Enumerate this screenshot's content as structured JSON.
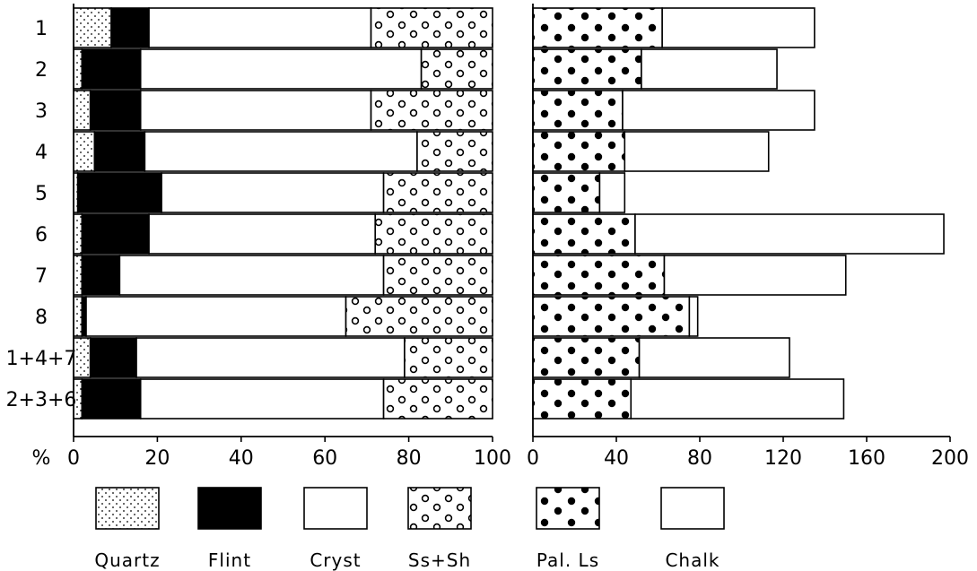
{
  "chart_data": [
    {
      "type": "bar",
      "stacked": true,
      "orientation": "horizontal",
      "categories": [
        "1",
        "2",
        "3",
        "4",
        "5",
        "6",
        "7",
        "8",
        "1+4+7",
        "2+3+6"
      ],
      "xlim": [
        0,
        100
      ],
      "xticks": [
        "0",
        "20",
        "40",
        "60",
        "80",
        "100"
      ],
      "xunit": "%",
      "series": [
        {
          "name": "Quartz",
          "values": [
            9,
            2,
            4,
            5,
            1,
            2,
            2,
            2,
            4,
            2
          ],
          "fill": "quartz"
        },
        {
          "name": "Flint",
          "values": [
            9,
            14,
            12,
            12,
            20,
            16,
            9,
            1,
            11,
            14
          ],
          "fill": "flint"
        },
        {
          "name": "Cryst",
          "values": [
            53,
            67,
            55,
            65,
            53,
            54,
            63,
            62,
            64,
            58
          ],
          "fill": "cryst"
        },
        {
          "name": "Ss+Sh",
          "values": [
            29,
            17,
            29,
            18,
            26,
            28,
            26,
            35,
            21,
            26
          ],
          "fill": "sssh"
        }
      ]
    },
    {
      "type": "bar",
      "stacked": true,
      "orientation": "horizontal",
      "categories": [
        "1",
        "2",
        "3",
        "4",
        "5",
        "6",
        "7",
        "8",
        "1+4+7",
        "2+3+6"
      ],
      "xlim": [
        0,
        200
      ],
      "xticks": [
        "0",
        "40",
        "80",
        "120",
        "160",
        "200"
      ],
      "series": [
        {
          "name": "Pal. Ls",
          "values": [
            62,
            52,
            43,
            44,
            32,
            49,
            63,
            75,
            51,
            47
          ],
          "fill": "palls"
        },
        {
          "name": "Chalk",
          "values": [
            73,
            65,
            92,
            69,
            12,
            148,
            87,
            4,
            72,
            102
          ],
          "fill": "chalk"
        }
      ]
    }
  ],
  "axis_unit_label": "%",
  "legend": [
    {
      "label": "Quartz",
      "fill": "quartz"
    },
    {
      "label": "Flint",
      "fill": "flint"
    },
    {
      "label": "Cryst",
      "fill": "cryst"
    },
    {
      "label": "Ss+Sh",
      "fill": "sssh"
    },
    {
      "label": "Pal. Ls",
      "fill": "palls"
    },
    {
      "label": "Chalk",
      "fill": "chalk"
    }
  ]
}
